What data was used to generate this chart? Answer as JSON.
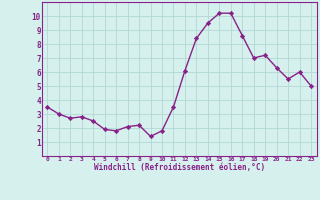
{
  "x": [
    0,
    1,
    2,
    3,
    4,
    5,
    6,
    7,
    8,
    9,
    10,
    11,
    12,
    13,
    14,
    15,
    16,
    17,
    18,
    19,
    20,
    21,
    22,
    23
  ],
  "y": [
    3.5,
    3.0,
    2.7,
    2.8,
    2.5,
    1.9,
    1.8,
    2.1,
    2.2,
    1.4,
    1.8,
    3.5,
    6.1,
    8.4,
    9.5,
    10.2,
    10.2,
    8.6,
    7.0,
    7.2,
    6.3,
    5.5,
    6.0,
    5.0
  ],
  "line_color": "#882288",
  "marker": "D",
  "marker_size": 2.2,
  "line_width": 1.0,
  "bg_color": "#d6f0ee",
  "grid_color": "#b0d8d4",
  "xlabel": "Windchill (Refroidissement éolien,°C)",
  "xlabel_color": "#882288",
  "tick_color": "#882288",
  "ylim": [
    0,
    11
  ],
  "xlim": [
    -0.5,
    23.5
  ],
  "yticks": [
    1,
    2,
    3,
    4,
    5,
    6,
    7,
    8,
    9,
    10
  ],
  "xticks": [
    0,
    1,
    2,
    3,
    4,
    5,
    6,
    7,
    8,
    9,
    10,
    11,
    12,
    13,
    14,
    15,
    16,
    17,
    18,
    19,
    20,
    21,
    22,
    23
  ]
}
